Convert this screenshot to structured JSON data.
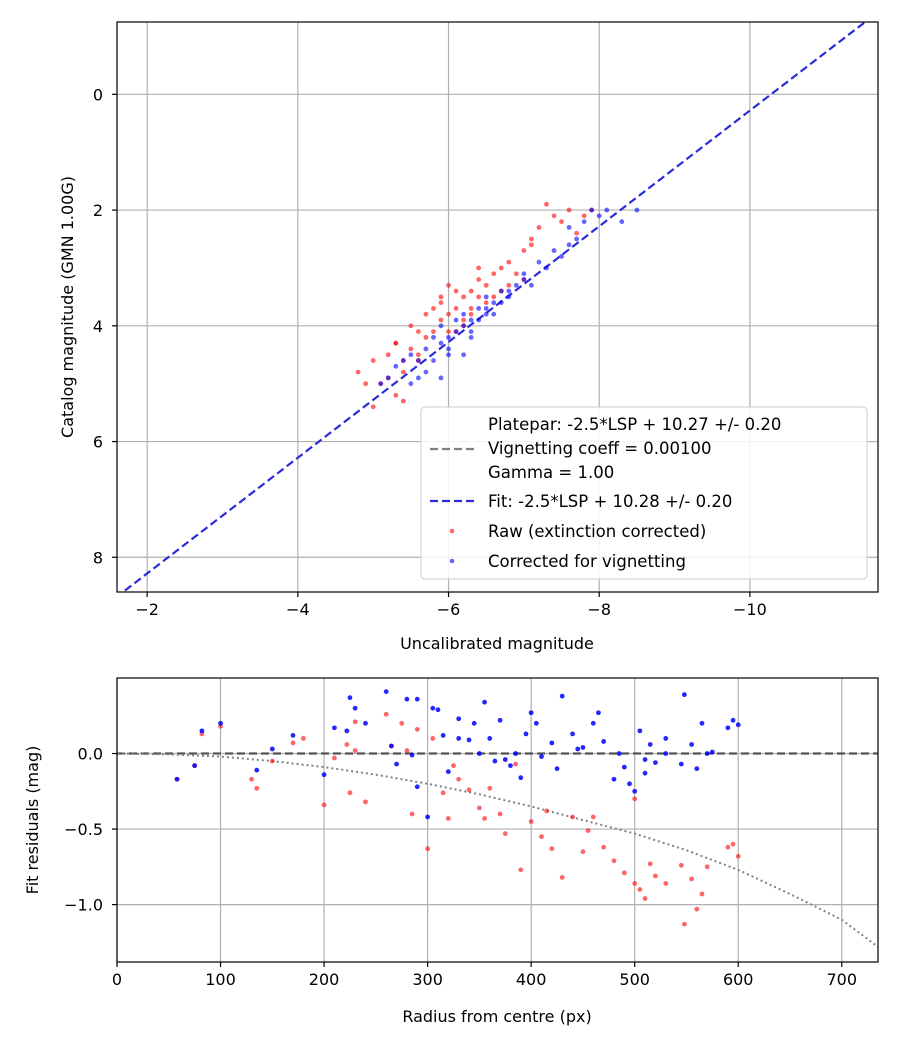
{
  "figure": {
    "top_chart": {
      "xlabel": "Uncalibrated magnitude",
      "ylabel": "Catalog magnitude (GMN 1.00G)",
      "xticks": [
        "−2",
        "−4",
        "−6",
        "−8",
        "−10"
      ],
      "yticks": [
        "0",
        "2",
        "4",
        "6",
        "8"
      ],
      "legend": {
        "platepar": "Platepar: -2.5*LSP + 10.27 +/- 0.20",
        "vignetting": "Vignetting coeff = 0.00100",
        "gamma": "Gamma = 1.00",
        "fit": "Fit: -2.5*LSP + 10.28 +/- 0.20",
        "raw": "Raw (extinction corrected)",
        "corrected": "Corrected for vignetting"
      }
    },
    "bottom_chart": {
      "xlabel": "Radius from centre (px)",
      "ylabel": "Fit residuals (mag)",
      "xticks": [
        "0",
        "100",
        "200",
        "300",
        "400",
        "500",
        "600",
        "700"
      ],
      "yticks": [
        "0.0",
        "−0.5",
        "−1.0"
      ]
    }
  },
  "colors": {
    "raw": "#ff0000",
    "corrected": "#0000ff",
    "fit": "#2b2bd9",
    "zero": "#555555",
    "curve": "#808080",
    "grid": "#b0b0b0"
  },
  "chart_data": [
    {
      "type": "scatter",
      "title": "",
      "xlabel": "Uncalibrated magnitude",
      "ylabel": "Catalog magnitude (GMN 1.00G)",
      "xlim": [
        -1.6,
        -11.7
      ],
      "ylim": [
        8.6,
        -1.25
      ],
      "x_inverted": true,
      "y_inverted": true,
      "grid": true,
      "legend_position": "lower-right",
      "lines": [
        {
          "name": "Platepar: -2.5*LSP + 10.27 +/- 0.20",
          "style": "none"
        },
        {
          "name": "Vignetting coeff = 0.00100 / Gamma = 1.00",
          "style": "dashed",
          "color": "gray"
        },
        {
          "name": "Fit: -2.5*LSP + 10.28 +/- 0.20",
          "style": "dashed",
          "color": "blue",
          "intercept": 10.28,
          "slope": 1.0
        }
      ],
      "series": [
        {
          "name": "Raw (extinction corrected)",
          "color": "red",
          "x": [
            -4.8,
            -5.0,
            -5.1,
            -5.2,
            -5.2,
            -5.3,
            -5.4,
            -5.4,
            -5.5,
            -5.5,
            -5.6,
            -5.6,
            -5.7,
            -5.7,
            -5.8,
            -5.8,
            -5.9,
            -5.9,
            -6.0,
            -6.0,
            -6.0,
            -6.1,
            -6.1,
            -6.2,
            -6.2,
            -6.2,
            -6.3,
            -6.3,
            -6.4,
            -6.4,
            -6.5,
            -6.5,
            -6.6,
            -6.7,
            -6.7,
            -6.8,
            -6.9,
            -7.0,
            -7.0,
            -7.1,
            -7.2,
            -7.3,
            -7.4,
            -7.5,
            -7.6,
            -7.8,
            -7.9,
            -5.0,
            -5.3,
            -5.6,
            -6.1,
            -6.3,
            -6.6,
            -6.8,
            -7.1,
            -4.9,
            -5.3,
            -5.9,
            -6.4,
            -7.7,
            -5.4
          ],
          "y": [
            4.8,
            4.6,
            5.0,
            4.5,
            4.9,
            4.3,
            4.6,
            4.8,
            4.0,
            4.4,
            4.1,
            4.6,
            3.8,
            4.2,
            3.7,
            4.1,
            3.6,
            3.9,
            3.3,
            3.8,
            4.1,
            3.4,
            3.7,
            3.5,
            3.9,
            4.0,
            3.4,
            3.7,
            3.0,
            3.5,
            3.3,
            3.6,
            3.1,
            3.0,
            3.4,
            2.9,
            3.1,
            2.7,
            3.2,
            2.6,
            2.3,
            1.9,
            2.1,
            2.2,
            2.0,
            2.1,
            2.0,
            5.4,
            5.2,
            4.5,
            4.1,
            3.8,
            3.5,
            3.3,
            2.5,
            5.0,
            4.3,
            3.5,
            3.2,
            2.4,
            5.3
          ]
        },
        {
          "name": "Corrected for vignetting",
          "color": "blue",
          "x": [
            -5.1,
            -5.2,
            -5.3,
            -5.4,
            -5.5,
            -5.6,
            -5.6,
            -5.7,
            -5.8,
            -5.8,
            -5.9,
            -5.9,
            -6.0,
            -6.0,
            -6.1,
            -6.1,
            -6.2,
            -6.2,
            -6.3,
            -6.3,
            -6.4,
            -6.4,
            -6.5,
            -6.5,
            -6.6,
            -6.6,
            -6.7,
            -6.7,
            -6.8,
            -6.9,
            -7.0,
            -7.1,
            -7.2,
            -7.3,
            -7.4,
            -7.5,
            -7.6,
            -7.7,
            -7.8,
            -7.9,
            -8.0,
            -8.1,
            -8.3,
            -8.5,
            -5.7,
            -6.0,
            -6.3,
            -6.5,
            -6.8,
            -7.0,
            -5.5,
            -5.9,
            -6.2,
            -7.6
          ],
          "y": [
            5.0,
            4.9,
            4.7,
            4.6,
            4.5,
            4.6,
            4.9,
            4.4,
            4.2,
            4.6,
            4.3,
            4.0,
            4.2,
            4.4,
            3.9,
            4.1,
            3.8,
            4.0,
            3.9,
            4.1,
            3.7,
            3.9,
            3.8,
            3.5,
            3.6,
            3.8,
            3.4,
            3.6,
            3.5,
            3.3,
            3.2,
            3.3,
            2.9,
            3.0,
            2.7,
            2.8,
            2.6,
            2.5,
            2.2,
            2.0,
            2.1,
            2.0,
            2.2,
            2.0,
            4.8,
            4.5,
            4.2,
            3.7,
            3.4,
            3.1,
            5.0,
            4.9,
            4.5,
            2.3
          ]
        }
      ]
    },
    {
      "type": "scatter",
      "title": "",
      "xlabel": "Radius from centre (px)",
      "ylabel": "Fit residuals (mag)",
      "xlim": [
        0,
        735
      ],
      "ylim": [
        -1.38,
        0.5
      ],
      "grid": true,
      "lines": [
        {
          "name": "zero",
          "style": "dashed",
          "color": "dimgray",
          "y": 0.0
        },
        {
          "name": "vignetting model",
          "style": "dotted",
          "color": "gray",
          "x": [
            0,
            50,
            100,
            150,
            200,
            250,
            300,
            350,
            400,
            450,
            500,
            550,
            600,
            650,
            700,
            735
          ],
          "y": [
            0,
            -0.005,
            -0.02,
            -0.05,
            -0.09,
            -0.14,
            -0.2,
            -0.27,
            -0.35,
            -0.44,
            -0.53,
            -0.64,
            -0.77,
            -0.93,
            -1.1,
            -1.28
          ]
        }
      ],
      "series": [
        {
          "name": "Raw (extinction corrected)",
          "color": "red",
          "x": [
            58,
            75,
            82,
            100,
            135,
            150,
            170,
            200,
            210,
            222,
            225,
            230,
            240,
            260,
            265,
            280,
            285,
            290,
            300,
            305,
            315,
            320,
            330,
            340,
            350,
            355,
            360,
            370,
            375,
            385,
            390,
            400,
            410,
            420,
            430,
            440,
            450,
            460,
            470,
            480,
            490,
            500,
            505,
            510,
            515,
            520,
            530,
            545,
            548,
            555,
            560,
            565,
            570,
            590,
            595,
            600,
            130,
            180,
            230,
            275,
            325,
            415,
            455,
            500
          ],
          "y": [
            -0.17,
            -0.08,
            0.13,
            0.18,
            -0.23,
            -0.05,
            0.07,
            -0.34,
            -0.03,
            0.06,
            -0.26,
            0.21,
            -0.32,
            0.26,
            0.05,
            0.02,
            -0.4,
            0.16,
            -0.63,
            0.1,
            -0.26,
            -0.43,
            -0.17,
            -0.24,
            -0.36,
            -0.43,
            -0.23,
            -0.4,
            -0.53,
            -0.07,
            -0.77,
            -0.45,
            -0.55,
            -0.63,
            -0.82,
            -0.42,
            -0.65,
            -0.42,
            -0.62,
            -0.71,
            -0.79,
            -0.86,
            -0.9,
            -0.96,
            -0.73,
            -0.81,
            -0.86,
            -0.74,
            -1.13,
            -0.83,
            -1.03,
            -0.93,
            -0.75,
            -0.62,
            -0.6,
            -0.68,
            -0.17,
            0.1,
            0.02,
            0.2,
            -0.08,
            -0.38,
            -0.51,
            -0.3
          ]
        },
        {
          "name": "Corrected for vignetting",
          "color": "blue",
          "x": [
            58,
            75,
            82,
            100,
            135,
            150,
            170,
            200,
            210,
            222,
            225,
            230,
            240,
            260,
            265,
            280,
            285,
            290,
            300,
            305,
            315,
            320,
            330,
            340,
            350,
            355,
            360,
            370,
            375,
            385,
            390,
            400,
            410,
            420,
            430,
            440,
            450,
            460,
            470,
            480,
            490,
            500,
            505,
            510,
            515,
            520,
            530,
            545,
            548,
            555,
            560,
            565,
            570,
            590,
            595,
            600,
            270,
            290,
            310,
            330,
            345,
            365,
            380,
            395,
            405,
            425,
            445,
            465,
            485,
            495,
            510,
            530,
            575
          ],
          "y": [
            -0.17,
            -0.08,
            0.15,
            0.2,
            -0.11,
            0.03,
            0.12,
            -0.14,
            0.17,
            0.15,
            0.37,
            0.3,
            0.2,
            0.41,
            0.05,
            0.36,
            -0.01,
            0.36,
            -0.42,
            0.3,
            0.12,
            -0.12,
            0.23,
            0.09,
            0.0,
            0.34,
            0.1,
            0.22,
            -0.04,
            0.0,
            -0.16,
            0.27,
            -0.02,
            0.07,
            0.38,
            0.13,
            0.04,
            0.2,
            0.08,
            -0.17,
            -0.09,
            -0.25,
            0.15,
            -0.13,
            0.06,
            -0.06,
            0.0,
            -0.07,
            0.39,
            0.06,
            -0.1,
            0.2,
            0.0,
            0.17,
            0.22,
            0.19,
            -0.07,
            -0.22,
            0.29,
            0.1,
            0.2,
            -0.05,
            -0.08,
            0.13,
            0.2,
            -0.1,
            0.03,
            0.27,
            0.0,
            -0.2,
            -0.04,
            0.1,
            0.01
          ]
        }
      ]
    }
  ]
}
